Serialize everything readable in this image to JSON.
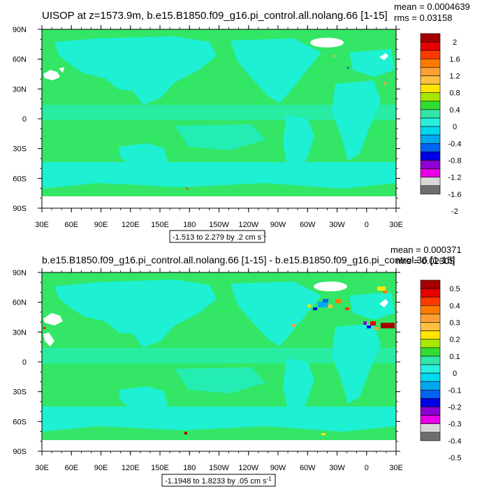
{
  "panels": [
    {
      "title": "UISOP at z=1573.9m, b.e15.B1850.f09_g16.pi_control.all.nolang.66 [1-15]",
      "mean": "mean = 0.0004639",
      "rms": "rms = 0.03158",
      "range_label": "-1.513 to 2.279 by .2 cm s",
      "unit_sup": "-1",
      "legend_labels": [
        "2",
        "1.6",
        "1.2",
        "0.8",
        "0.4",
        "0",
        "-0.4",
        "-0.8",
        "-1.2",
        "-1.6",
        "-2"
      ]
    },
    {
      "title": "b.e15.B1850.f09_g16.pi_control.all.nolang.66 [1-15] - b.e15.B1850.f09_g16.pi_control.36 [1-15]",
      "mean": "mean = 0.000371",
      "rms": "rms = 0.02305",
      "range_label": "-1.1948 to 1.8233 by .05 cm s",
      "unit_sup": "-1",
      "legend_labels": [
        "0.5",
        "0.4",
        "0.3",
        "0.2",
        "0.1",
        "0",
        "-0.1",
        "-0.2",
        "-0.3",
        "-0.4",
        "-0.5"
      ]
    }
  ],
  "lat_labels": [
    "90N",
    "60N",
    "30N",
    "0",
    "30S",
    "60S",
    "90S"
  ],
  "lon_labels": [
    "30E",
    "60E",
    "90E",
    "120E",
    "150E",
    "180",
    "150W",
    "120W",
    "90W",
    "60W",
    "30W",
    "0",
    "30E"
  ],
  "colorbar_colors": [
    "#a50000",
    "#e60000",
    "#ff3a00",
    "#ff7a00",
    "#ffa033",
    "#ffc040",
    "#ffe600",
    "#a8e600",
    "#32dc32",
    "#32e6a8",
    "#28f0dc",
    "#00d8f0",
    "#00a8f0",
    "#0064f0",
    "#0000e6",
    "#8c00d2",
    "#e600e6",
    "#d8d8d8",
    "#6e6e6e"
  ],
  "colors": {
    "ocean": "#33e666",
    "land": "#1ef0d4",
    "missing": "#ffffff",
    "frame": "#000000"
  }
}
